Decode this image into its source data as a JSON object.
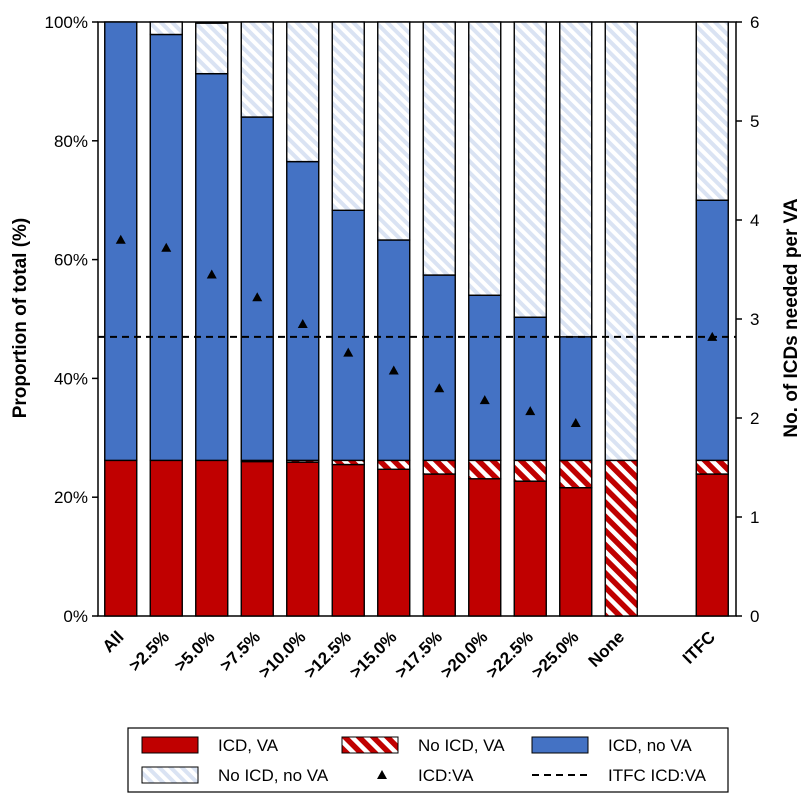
{
  "chart_data": {
    "type": "bar",
    "stacked": true,
    "categories": [
      "All",
      ">2.5%",
      ">5.0%",
      ">7.5%",
      ">10.0%",
      ">12.5%",
      ">15.0%",
      ">17.5%",
      ">20.0%",
      ">22.5%",
      ">25.0%",
      "None",
      "ITFC"
    ],
    "series": [
      {
        "name": "ICD, VA",
        "values": [
          26.2,
          26.2,
          26.2,
          26.0,
          25.9,
          25.5,
          24.7,
          23.9,
          23.1,
          22.7,
          21.6,
          0,
          23.9
        ]
      },
      {
        "name": "No ICD, VA",
        "values": [
          0,
          0,
          0,
          0.2,
          0.3,
          0.7,
          1.5,
          2.3,
          3.1,
          3.5,
          4.6,
          26.2,
          2.3
        ]
      },
      {
        "name": "ICD, no VA",
        "values": [
          73.8,
          71.7,
          65.1,
          57.8,
          50.3,
          42.1,
          37.1,
          31.2,
          27.8,
          24.1,
          20.8,
          0,
          43.8
        ]
      },
      {
        "name": "No ICD, no VA",
        "values": [
          0,
          2.1,
          8.5,
          16.0,
          23.5,
          31.7,
          36.7,
          42.6,
          46.0,
          49.7,
          53.0,
          73.8,
          30.0
        ]
      }
    ],
    "secondary_series": {
      "name": "ICD:VA",
      "values": [
        3.8,
        3.72,
        3.45,
        3.22,
        2.95,
        2.66,
        2.48,
        2.3,
        2.18,
        2.07,
        1.95,
        null,
        2.82
      ]
    },
    "reference_line": {
      "name": "ITFC ICD:VA",
      "value": 2.82
    },
    "ylabel": "Proportion of total (%)",
    "ylim": [
      0,
      100
    ],
    "yticks": [
      "0%",
      "20%",
      "40%",
      "60%",
      "80%",
      "100%"
    ],
    "y2label": "No. of ICDs needed per VA",
    "y2lim": [
      0,
      6
    ],
    "y2ticks": [
      "0",
      "1",
      "2",
      "3",
      "4",
      "5",
      "6"
    ],
    "colors": {
      "icd_va": "#c00000",
      "no_icd_va": "#c00000",
      "icd_no_va": "#4472c4",
      "no_icd_no_va": "#dae3f3"
    },
    "legend": [
      {
        "key": "icd_va",
        "label": "ICD, VA"
      },
      {
        "key": "no_icd_va",
        "label": "No ICD, VA"
      },
      {
        "key": "icd_no_va",
        "label": "ICD, no VA"
      },
      {
        "key": "no_icd_no_va",
        "label": "No ICD, no VA"
      },
      {
        "key": "marker",
        "label": "ICD:VA"
      },
      {
        "key": "dashed",
        "label": "ITFC ICD:VA"
      }
    ]
  }
}
